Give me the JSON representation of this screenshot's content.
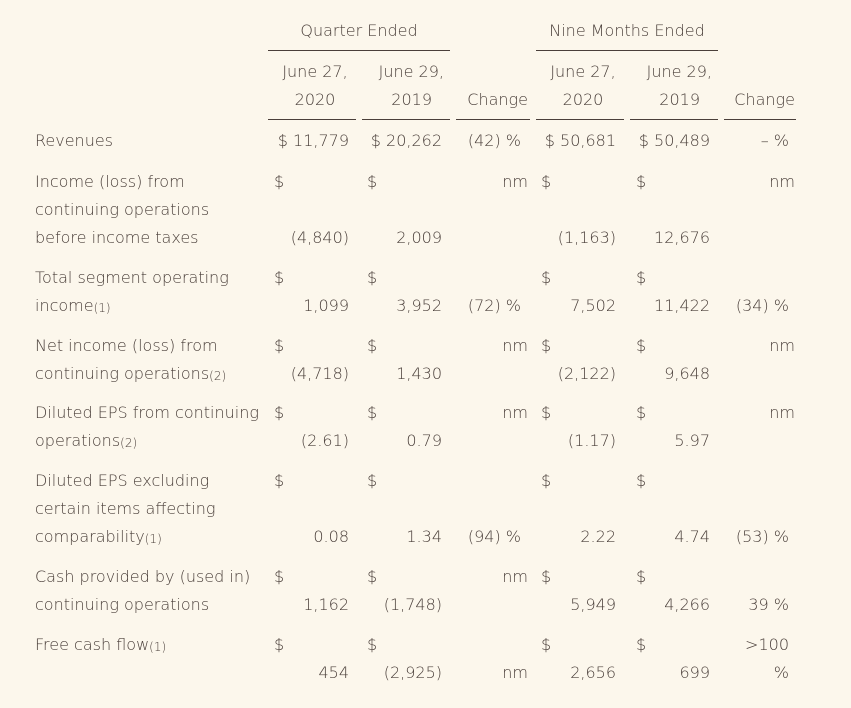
{
  "header": {
    "group1": "Quarter Ended",
    "group2": "Nine Months Ended",
    "col_q1": [
      "June 27,",
      "2020"
    ],
    "col_q2": [
      "June 29,",
      "2019"
    ],
    "col_qchg": "Change",
    "col_n1": [
      "June 27,",
      "2020"
    ],
    "col_n2": [
      "June 29,",
      "2019"
    ],
    "col_nchg": "Change"
  },
  "rows": [
    {
      "label": "Revenues",
      "fn": "",
      "q1": "$ 11,779",
      "q2": "$ 20,262",
      "qchg": "(42) %",
      "n1": "$ 50,681",
      "n2": "$ 50,489",
      "nchg": "– %"
    },
    {
      "label1": "Income (loss) from",
      "label2": "continuing operations",
      "label3": "before income taxes",
      "q1": "(4,840)",
      "q2": "2,009",
      "qchg": "nm",
      "n1": "(1,163)",
      "n2": "12,676",
      "nchg": "nm"
    },
    {
      "label1": "Total segment operating",
      "label2": "income",
      "fn": "(1)",
      "q1": "1,099",
      "q2": "3,952",
      "qchg": "(72) %",
      "n1": "7,502",
      "n2": "11,422",
      "nchg": "(34) %"
    },
    {
      "label1": "Net income (loss) from",
      "label2": "continuing operations",
      "fn": "(2)",
      "q1": "(4,718)",
      "q2": "1,430",
      "qchg": "nm",
      "n1": "(2,122)",
      "n2": "9,648",
      "nchg": "nm"
    },
    {
      "label1": "Diluted EPS from continuing",
      "label2": "operations",
      "fn": "(2)",
      "q1": "(2.61)",
      "q2": "0.79",
      "qchg": "nm",
      "n1": "(1.17)",
      "n2": "5.97",
      "nchg": "nm"
    },
    {
      "label1": "Diluted EPS excluding",
      "label2": "certain items affecting",
      "label3": "comparability",
      "fn": "(1)",
      "q1": "0.08",
      "q2": "1.34",
      "qchg": "(94) %",
      "n1": "2.22",
      "n2": "4.74",
      "nchg": "(53) %"
    },
    {
      "label1": "Cash provided by (used in)",
      "label2": "continuing operations",
      "q1": "1,162",
      "q2": "(1,748)",
      "qchg": "nm",
      "n1": "5,949",
      "n2": "4,266",
      "nchg": "39 %"
    },
    {
      "label1": "Free cash flow",
      "fn": "(1)",
      "q1": "454",
      "q2": "(2,925)",
      "qchg": "nm",
      "n1": "2,656",
      "n2": "699",
      "nchg1": ">100",
      "nchg2": "%"
    }
  ],
  "currency": "$"
}
